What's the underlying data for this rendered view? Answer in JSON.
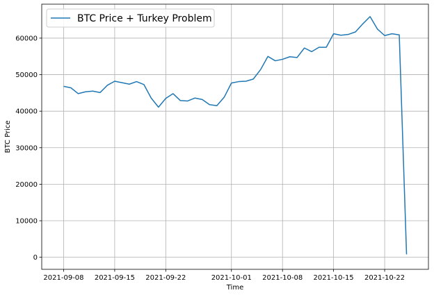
{
  "chart_data": {
    "type": "line",
    "xlabel": "Time",
    "ylabel": "BTC Price",
    "grid": true,
    "legend_placement": "top-left",
    "xlim": [
      "2021-09-05",
      "2021-10-28"
    ],
    "ylim": [
      -3300,
      69300
    ],
    "x_ticks": [
      "2021-09-08",
      "2021-09-15",
      "2021-09-22",
      "2021-10-01",
      "2021-10-08",
      "2021-10-15",
      "2021-10-22"
    ],
    "y_ticks": [
      0,
      10000,
      20000,
      30000,
      40000,
      50000,
      60000
    ],
    "series": [
      {
        "name": "BTC Price + Turkey Problem",
        "color": "#1f77b4",
        "x": [
          "2021-09-08",
          "2021-09-09",
          "2021-09-10",
          "2021-09-11",
          "2021-09-12",
          "2021-09-13",
          "2021-09-14",
          "2021-09-15",
          "2021-09-16",
          "2021-09-17",
          "2021-09-18",
          "2021-09-19",
          "2021-09-20",
          "2021-09-21",
          "2021-09-22",
          "2021-09-23",
          "2021-09-24",
          "2021-09-25",
          "2021-09-26",
          "2021-09-27",
          "2021-09-28",
          "2021-09-29",
          "2021-09-30",
          "2021-10-01",
          "2021-10-02",
          "2021-10-03",
          "2021-10-04",
          "2021-10-05",
          "2021-10-06",
          "2021-10-07",
          "2021-10-08",
          "2021-10-09",
          "2021-10-10",
          "2021-10-11",
          "2021-10-12",
          "2021-10-13",
          "2021-10-14",
          "2021-10-15",
          "2021-10-16",
          "2021-10-17",
          "2021-10-18",
          "2021-10-19",
          "2021-10-20",
          "2021-10-21",
          "2021-10-22",
          "2021-10-23",
          "2021-10-24",
          "2021-10-25"
        ],
        "y": [
          46800,
          46400,
          44800,
          45300,
          45500,
          45100,
          47100,
          48200,
          47800,
          47400,
          48100,
          47300,
          43600,
          41100,
          43500,
          44800,
          42900,
          42800,
          43600,
          43200,
          41800,
          41500,
          43800,
          47700,
          48100,
          48200,
          48800,
          51400,
          55000,
          53800,
          54200,
          54900,
          54700,
          57300,
          56300,
          57500,
          57500,
          61200,
          60800,
          61000,
          61700,
          63900,
          65900,
          62500,
          60700,
          61200,
          60900,
          800
        ]
      }
    ]
  }
}
